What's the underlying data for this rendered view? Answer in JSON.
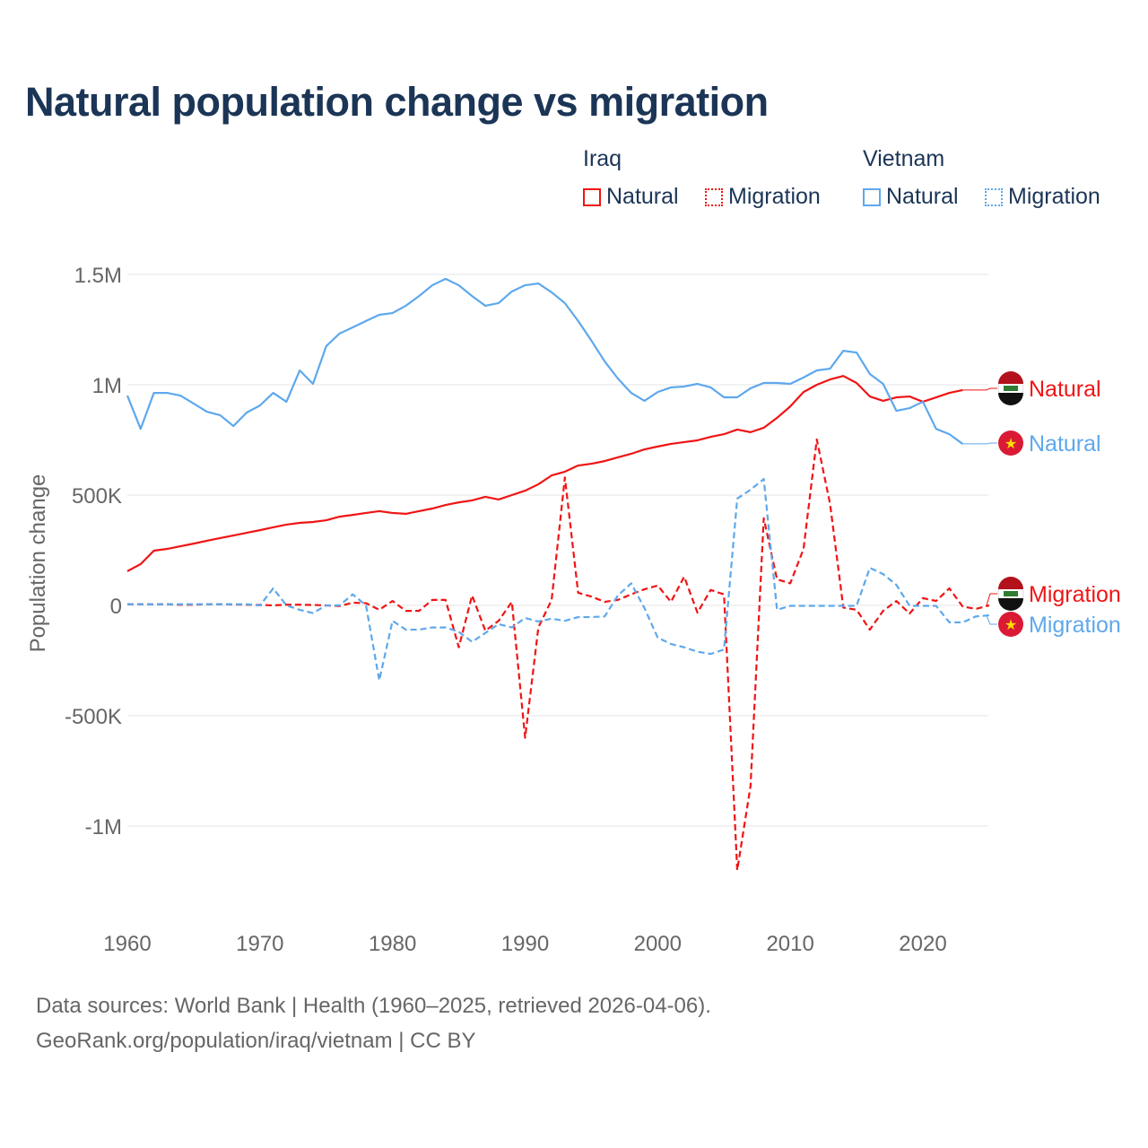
{
  "chart_data": {
    "type": "line",
    "title": "Natural population change vs migration",
    "xlabel": "",
    "ylabel": "Population change",
    "xlim": [
      1960,
      2025
    ],
    "ylim": [
      -1200000,
      1500000
    ],
    "x_ticks": [
      1960,
      1970,
      1980,
      1990,
      2000,
      2010,
      2020
    ],
    "x_tick_labels": [
      "1960",
      "1970",
      "1980",
      "1990",
      "2000",
      "2010",
      "2020"
    ],
    "y_ticks": [
      1500000,
      1000000,
      500000,
      0,
      -500000,
      -1000000
    ],
    "y_tick_labels": [
      "1.5M",
      "1M",
      "500K",
      "0",
      "-500K",
      "-1M"
    ],
    "grid": true,
    "legend": {
      "placement": "top-right",
      "groups": [
        {
          "name": "Iraq",
          "items": [
            "Natural",
            "Migration"
          ]
        },
        {
          "name": "Vietnam",
          "items": [
            "Natural",
            "Migration"
          ]
        }
      ]
    },
    "series": [
      {
        "name": "Iraq Natural",
        "country": "Iraq",
        "label": "Natural",
        "color": "#f01414",
        "dash": false,
        "start_year": 1960,
        "values": [
          155000,
          187000,
          248000,
          256000,
          268000,
          280000,
          293000,
          305000,
          317000,
          329000,
          341000,
          354000,
          366000,
          374000,
          378000,
          386000,
          402000,
          410000,
          419000,
          427000,
          419000,
          415000,
          427000,
          439000,
          455000,
          467000,
          476000,
          492000,
          480000,
          500000,
          520000,
          549000,
          589000,
          606000,
          634000,
          642000,
          654000,
          671000,
          687000,
          707000,
          720000,
          732000,
          740000,
          748000,
          764000,
          776000,
          797000,
          785000,
          805000,
          850000,
          902000,
          967000,
          1000000,
          1024000,
          1040000,
          1008000,
          947000,
          927000,
          943000,
          947000,
          923000,
          943000,
          963000,
          976000
        ]
      },
      {
        "name": "Vietnam Natural",
        "country": "Vietnam",
        "label": "Natural",
        "color": "#5ea8ec",
        "dash": false,
        "start_year": 1960,
        "values": [
          951000,
          800000,
          963000,
          963000,
          951000,
          915000,
          878000,
          862000,
          813000,
          874000,
          906000,
          963000,
          923000,
          1065000,
          1004000,
          1175000,
          1232000,
          1260000,
          1289000,
          1317000,
          1325000,
          1358000,
          1402000,
          1451000,
          1480000,
          1451000,
          1402000,
          1358000,
          1370000,
          1423000,
          1451000,
          1459000,
          1419000,
          1370000,
          1289000,
          1200000,
          1106000,
          1028000,
          963000,
          927000,
          967000,
          988000,
          992000,
          1004000,
          988000,
          943000,
          943000,
          984000,
          1008000,
          1008000,
          1004000,
          1033000,
          1065000,
          1073000,
          1154000,
          1146000,
          1049000,
          1004000,
          882000,
          894000,
          923000,
          800000,
          776000,
          732000
        ]
      },
      {
        "name": "Iraq Migration",
        "country": "Iraq",
        "label": "Migration",
        "color": "#f01414",
        "dash": true,
        "start_year": 1960,
        "values": [
          5000,
          5000,
          5000,
          5000,
          3000,
          3000,
          5000,
          5000,
          4000,
          3000,
          2000,
          0,
          3000,
          3000,
          2000,
          0,
          -3000,
          12000,
          10000,
          -20000,
          20000,
          -25000,
          -25000,
          25000,
          25000,
          -190000,
          45000,
          -115000,
          -70000,
          16000,
          -600000,
          -100000,
          25000,
          580000,
          57000,
          40000,
          16000,
          25000,
          50000,
          73000,
          90000,
          16000,
          130000,
          -33000,
          70000,
          50000,
          -1200000,
          -820000,
          395000,
          118000,
          100000,
          256000,
          752000,
          460000,
          -10000,
          -20000,
          -110000,
          -25000,
          20000,
          -37000,
          33000,
          20000,
          77000,
          -5000,
          -16000,
          0
        ]
      },
      {
        "name": "Vietnam Migration",
        "country": "Vietnam",
        "label": "Migration",
        "color": "#5ea8ec",
        "dash": true,
        "start_year": 1960,
        "values": [
          5000,
          5000,
          5000,
          5000,
          5000,
          5000,
          5000,
          5000,
          5000,
          5000,
          0,
          77000,
          0,
          -20000,
          -35000,
          0,
          0,
          50000,
          0,
          -340000,
          -70000,
          -110000,
          -110000,
          -100000,
          -100000,
          -120000,
          -165000,
          -125000,
          -85000,
          -100000,
          -57000,
          -73000,
          -60000,
          -70000,
          -53000,
          -53000,
          -50000,
          45000,
          100000,
          -12000,
          -146000,
          -175000,
          -190000,
          -210000,
          -220000,
          -200000,
          484000,
          524000,
          573000,
          -20000,
          -2000,
          -2000,
          -2000,
          -2000,
          -2000,
          -2000,
          170000,
          142000,
          93000,
          -2000,
          -2000,
          -2000,
          -77000,
          -77000,
          -50000,
          -45000
        ]
      }
    ],
    "annotations": {
      "end_labels": [
        "Natural",
        "Natural",
        "Migration",
        "Migration"
      ]
    }
  },
  "footer": {
    "line1": "Data sources: World Bank | Health (1960–2025, retrieved 2026-04-06).",
    "line2": "GeoRank.org/population/iraq/vietnam | CC BY"
  }
}
